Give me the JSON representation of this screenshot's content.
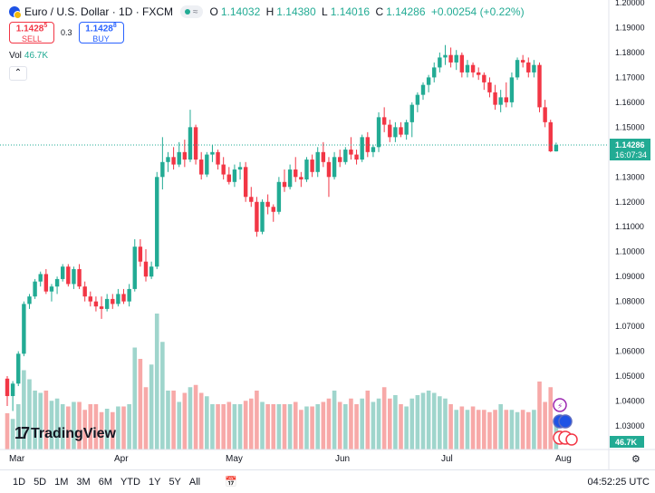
{
  "header": {
    "title": "Euro / U.S. Dollar · 1D · FXCM",
    "badge_icon": "wave-icon",
    "ohlc": {
      "o_label": "O",
      "o": "1.14032",
      "h_label": "H",
      "h": "1.14380",
      "l_label": "L",
      "l": "1.14016",
      "c_label": "C",
      "c": "1.14286",
      "change": "+0.00254 (+0.22%)"
    }
  },
  "trade": {
    "sell_price": "1.1428",
    "sell_sup": "5",
    "sell_label": "SELL",
    "spread": "0.3",
    "buy_price": "1.1428",
    "buy_sup": "8",
    "buy_label": "BUY"
  },
  "volume_legend": {
    "label": "Vol",
    "value": "46.7K"
  },
  "watermark": "TradingView",
  "price_scale": {
    "ticks": [
      "1.20000",
      "1.19000",
      "1.18000",
      "1.17000",
      "1.16000",
      "1.15000",
      "1.14000",
      "1.13000",
      "1.12000",
      "1.11000",
      "1.10000",
      "1.09000",
      "1.08000",
      "1.07000",
      "1.06000",
      "1.05000",
      "1.04000",
      "1.03000"
    ],
    "last_price": "1.14286",
    "countdown": "16:07:34",
    "volume_badge": "46.7K"
  },
  "time_scale": {
    "labels": [
      "Mar",
      "Apr",
      "May",
      "Jun",
      "Jul",
      "Aug"
    ]
  },
  "colors": {
    "up": "#22ab94",
    "down": "#f23645",
    "vol_up": "#9fd5cc",
    "vol_down": "#f7a9a8",
    "line": "#22ab94"
  },
  "bottom_bar": {
    "ranges": [
      "1D",
      "5D",
      "1M",
      "3M",
      "6M",
      "YTD",
      "1Y",
      "5Y",
      "All"
    ],
    "calendar_icon": "calendar-icon",
    "time": "04:52:25 UTC"
  },
  "chart_data": {
    "type": "candlestick",
    "ylim": [
      1.025,
      1.2
    ],
    "x_labels": [
      "Mar",
      "Apr",
      "May",
      "Jun",
      "Jul",
      "Aug"
    ],
    "candles": [
      [
        1.049,
        1.05,
        1.038,
        1.042
      ],
      [
        1.042,
        1.048,
        1.036,
        1.047
      ],
      [
        1.047,
        1.06,
        1.046,
        1.059
      ],
      [
        1.059,
        1.08,
        1.058,
        1.079
      ],
      [
        1.079,
        1.083,
        1.077,
        1.082
      ],
      [
        1.082,
        1.089,
        1.081,
        1.088
      ],
      [
        1.088,
        1.092,
        1.086,
        1.091
      ],
      [
        1.091,
        1.093,
        1.083,
        1.084
      ],
      [
        1.084,
        1.087,
        1.08,
        1.086
      ],
      [
        1.086,
        1.09,
        1.083,
        1.089
      ],
      [
        1.089,
        1.095,
        1.088,
        1.094
      ],
      [
        1.094,
        1.095,
        1.086,
        1.087
      ],
      [
        1.087,
        1.094,
        1.085,
        1.093
      ],
      [
        1.093,
        1.095,
        1.085,
        1.086
      ],
      [
        1.086,
        1.088,
        1.08,
        1.082
      ],
      [
        1.082,
        1.084,
        1.078,
        1.08
      ],
      [
        1.08,
        1.082,
        1.076,
        1.078
      ],
      [
        1.078,
        1.082,
        1.073,
        1.077
      ],
      [
        1.077,
        1.083,
        1.076,
        1.081
      ],
      [
        1.081,
        1.083,
        1.077,
        1.079
      ],
      [
        1.079,
        1.085,
        1.078,
        1.083
      ],
      [
        1.083,
        1.085,
        1.079,
        1.08
      ],
      [
        1.08,
        1.087,
        1.078,
        1.085
      ],
      [
        1.085,
        1.105,
        1.084,
        1.102
      ],
      [
        1.102,
        1.105,
        1.094,
        1.096
      ],
      [
        1.096,
        1.101,
        1.088,
        1.09
      ],
      [
        1.09,
        1.096,
        1.089,
        1.094
      ],
      [
        1.094,
        1.132,
        1.093,
        1.13
      ],
      [
        1.13,
        1.146,
        1.125,
        1.136
      ],
      [
        1.136,
        1.14,
        1.132,
        1.138
      ],
      [
        1.138,
        1.142,
        1.133,
        1.135
      ],
      [
        1.135,
        1.144,
        1.134,
        1.14
      ],
      [
        1.14,
        1.145,
        1.134,
        1.137
      ],
      [
        1.137,
        1.157,
        1.136,
        1.15
      ],
      [
        1.15,
        1.151,
        1.135,
        1.137
      ],
      [
        1.137,
        1.14,
        1.129,
        1.131
      ],
      [
        1.131,
        1.14,
        1.13,
        1.139
      ],
      [
        1.139,
        1.143,
        1.136,
        1.14
      ],
      [
        1.14,
        1.141,
        1.133,
        1.135
      ],
      [
        1.135,
        1.138,
        1.129,
        1.131
      ],
      [
        1.131,
        1.134,
        1.127,
        1.128
      ],
      [
        1.128,
        1.135,
        1.126,
        1.133
      ],
      [
        1.133,
        1.136,
        1.129,
        1.134
      ],
      [
        1.134,
        1.136,
        1.12,
        1.122
      ],
      [
        1.122,
        1.126,
        1.118,
        1.12
      ],
      [
        1.12,
        1.122,
        1.106,
        1.108
      ],
      [
        1.108,
        1.121,
        1.107,
        1.12
      ],
      [
        1.12,
        1.123,
        1.115,
        1.118
      ],
      [
        1.118,
        1.119,
        1.112,
        1.116
      ],
      [
        1.116,
        1.13,
        1.115,
        1.128
      ],
      [
        1.128,
        1.133,
        1.124,
        1.126
      ],
      [
        1.126,
        1.135,
        1.125,
        1.133
      ],
      [
        1.133,
        1.138,
        1.128,
        1.13
      ],
      [
        1.13,
        1.132,
        1.126,
        1.129
      ],
      [
        1.129,
        1.138,
        1.128,
        1.137
      ],
      [
        1.137,
        1.139,
        1.13,
        1.132
      ],
      [
        1.132,
        1.142,
        1.13,
        1.14
      ],
      [
        1.14,
        1.144,
        1.134,
        1.136
      ],
      [
        1.136,
        1.138,
        1.122,
        1.13
      ],
      [
        1.13,
        1.14,
        1.129,
        1.138
      ],
      [
        1.138,
        1.141,
        1.134,
        1.136
      ],
      [
        1.136,
        1.142,
        1.135,
        1.141
      ],
      [
        1.141,
        1.146,
        1.137,
        1.139
      ],
      [
        1.139,
        1.141,
        1.135,
        1.137
      ],
      [
        1.137,
        1.147,
        1.136,
        1.146
      ],
      [
        1.146,
        1.148,
        1.138,
        1.14
      ],
      [
        1.14,
        1.143,
        1.138,
        1.142
      ],
      [
        1.142,
        1.156,
        1.14,
        1.154
      ],
      [
        1.154,
        1.158,
        1.148,
        1.151
      ],
      [
        1.151,
        1.153,
        1.144,
        1.146
      ],
      [
        1.146,
        1.152,
        1.144,
        1.15
      ],
      [
        1.15,
        1.152,
        1.146,
        1.147
      ],
      [
        1.147,
        1.153,
        1.145,
        1.152
      ],
      [
        1.152,
        1.16,
        1.146,
        1.159
      ],
      [
        1.159,
        1.164,
        1.156,
        1.163
      ],
      [
        1.163,
        1.168,
        1.161,
        1.167
      ],
      [
        1.167,
        1.171,
        1.164,
        1.17
      ],
      [
        1.17,
        1.176,
        1.168,
        1.174
      ],
      [
        1.174,
        1.18,
        1.172,
        1.178
      ],
      [
        1.178,
        1.183,
        1.175,
        1.179
      ],
      [
        1.179,
        1.182,
        1.174,
        1.176
      ],
      [
        1.176,
        1.181,
        1.173,
        1.179
      ],
      [
        1.179,
        1.18,
        1.17,
        1.172
      ],
      [
        1.172,
        1.177,
        1.17,
        1.175
      ],
      [
        1.175,
        1.176,
        1.17,
        1.172
      ],
      [
        1.172,
        1.174,
        1.169,
        1.171
      ],
      [
        1.171,
        1.172,
        1.165,
        1.168
      ],
      [
        1.168,
        1.17,
        1.162,
        1.164
      ],
      [
        1.164,
        1.167,
        1.157,
        1.159
      ],
      [
        1.159,
        1.165,
        1.156,
        1.162
      ],
      [
        1.162,
        1.168,
        1.158,
        1.16
      ],
      [
        1.16,
        1.172,
        1.158,
        1.17
      ],
      [
        1.17,
        1.178,
        1.169,
        1.177
      ],
      [
        1.177,
        1.179,
        1.174,
        1.176
      ],
      [
        1.176,
        1.178,
        1.17,
        1.172
      ],
      [
        1.172,
        1.177,
        1.17,
        1.175
      ],
      [
        1.175,
        1.176,
        1.156,
        1.158
      ],
      [
        1.158,
        1.161,
        1.15,
        1.152
      ],
      [
        1.152,
        1.153,
        1.14,
        1.1403
      ],
      [
        1.1403,
        1.1438,
        1.1402,
        1.1429
      ]
    ],
    "volumes": [
      0.32,
      0.27,
      0.4,
      0.7,
      0.62,
      0.52,
      0.5,
      0.52,
      0.43,
      0.45,
      0.4,
      0.38,
      0.42,
      0.42,
      0.35,
      0.4,
      0.4,
      0.33,
      0.36,
      0.33,
      0.38,
      0.38,
      0.4,
      0.9,
      0.8,
      0.55,
      0.75,
      1.2,
      0.95,
      0.52,
      0.52,
      0.42,
      0.5,
      0.55,
      0.57,
      0.5,
      0.47,
      0.4,
      0.4,
      0.4,
      0.42,
      0.4,
      0.4,
      0.43,
      0.45,
      0.52,
      0.42,
      0.4,
      0.4,
      0.4,
      0.4,
      0.4,
      0.42,
      0.35,
      0.38,
      0.38,
      0.4,
      0.42,
      0.45,
      0.52,
      0.42,
      0.4,
      0.45,
      0.4,
      0.45,
      0.52,
      0.42,
      0.45,
      0.55,
      0.45,
      0.48,
      0.4,
      0.38,
      0.45,
      0.48,
      0.5,
      0.52,
      0.5,
      0.47,
      0.45,
      0.4,
      0.35,
      0.38,
      0.35,
      0.38,
      0.35,
      0.35,
      0.33,
      0.35,
      0.4,
      0.35,
      0.35,
      0.33,
      0.35,
      0.33,
      0.35,
      0.6,
      0.42,
      0.55,
      0.25
    ]
  }
}
